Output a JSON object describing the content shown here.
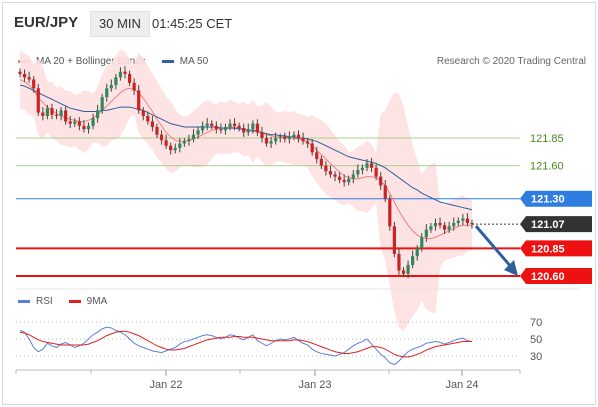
{
  "header": {
    "symbol": "EUR/JPY",
    "timeframe": "30 MIN",
    "time": "01:45:25 CET"
  },
  "legend": {
    "main": [
      {
        "label": "MA 20 + Bollinger Bands",
        "color": "#f08080"
      },
      {
        "label": "MA 50",
        "color": "#2f5f9c"
      }
    ],
    "rsi": [
      {
        "label": "RSI",
        "color": "#5b7fd6"
      },
      {
        "label": "9MA",
        "color": "#e02020"
      }
    ]
  },
  "copyright": "Research © 2020 Trading Central",
  "chart_data": [
    {
      "type": "candlestick",
      "title": "",
      "x_ticks": [
        "Jan 22",
        "Jan 23",
        "Jan 24"
      ],
      "y_axis_labels": [
        "121.85",
        "121.60"
      ],
      "levels": [
        {
          "value": 121.85,
          "label": "121.85",
          "color": "#7ab648",
          "style": "support-resistance"
        },
        {
          "value": 121.6,
          "label": "121.60",
          "color": "#7ab648",
          "style": "support-resistance"
        },
        {
          "value": 121.3,
          "label": "121.30",
          "color": "#2f7de1",
          "style": "pivot"
        },
        {
          "value": 121.07,
          "label": "121.07",
          "color": "#333333",
          "style": "last-price"
        },
        {
          "value": 120.85,
          "label": "120.85",
          "color": "#ee1111",
          "style": "target"
        },
        {
          "value": 120.6,
          "label": "120.60",
          "color": "#ee1111",
          "style": "target"
        }
      ],
      "close_series": [
        122.43,
        122.4,
        122.38,
        122.3,
        122.08,
        122.05,
        122.12,
        122.06,
        122.05,
        122.1,
        122.0,
        121.98,
        122.0,
        121.96,
        121.93,
        121.96,
        122.03,
        122.1,
        122.22,
        122.3,
        122.33,
        122.4,
        122.45,
        122.43,
        122.35,
        122.28,
        122.1,
        122.05,
        122.0,
        121.95,
        121.88,
        121.83,
        121.78,
        121.74,
        121.76,
        121.8,
        121.82,
        121.84,
        121.88,
        121.92,
        121.96,
        121.98,
        121.96,
        121.93,
        121.92,
        121.95,
        121.98,
        121.96,
        121.94,
        121.9,
        121.93,
        121.98,
        121.9,
        121.85,
        121.8,
        121.82,
        121.85,
        121.86,
        121.84,
        121.86,
        121.88,
        121.85,
        121.82,
        121.8,
        121.72,
        121.66,
        121.6,
        121.55,
        121.52,
        121.5,
        121.47,
        121.45,
        121.48,
        121.52,
        121.56,
        121.58,
        121.62,
        121.58,
        121.5,
        121.42,
        121.3,
        121.05,
        120.8,
        120.65,
        120.62,
        120.7,
        120.78,
        120.85,
        120.95,
        121.02,
        121.05,
        121.08,
        121.06,
        121.02,
        121.05,
        121.08,
        121.1,
        121.12,
        121.08,
        121.07
      ],
      "ma20": [
        122.38,
        122.36,
        122.33,
        122.28,
        122.22,
        122.17,
        122.13,
        122.1,
        122.07,
        122.05,
        122.03,
        122.02,
        122.01,
        122.0,
        122.0,
        122.01,
        122.03,
        122.06,
        122.1,
        122.14,
        122.18,
        122.22,
        122.26,
        122.29,
        122.3,
        122.29,
        122.26,
        122.21,
        122.15,
        122.09,
        122.02,
        121.96,
        121.9,
        121.86,
        121.83,
        121.82,
        121.82,
        121.83,
        121.84,
        121.86,
        121.88,
        121.9,
        121.92,
        121.93,
        121.94,
        121.94,
        121.95,
        121.95,
        121.94,
        121.93,
        121.92,
        121.91,
        121.91,
        121.89,
        121.88,
        121.87,
        121.86,
        121.86,
        121.86,
        121.85,
        121.85,
        121.84,
        121.83,
        121.81,
        121.78,
        121.74,
        121.7,
        121.66,
        121.62,
        121.58,
        121.54,
        121.51,
        121.49,
        121.48,
        121.48,
        121.49,
        121.5,
        121.5,
        121.49,
        121.46,
        121.42,
        121.35,
        121.27,
        121.19,
        121.12,
        121.06,
        121.01,
        120.97,
        120.95,
        120.94,
        120.94,
        120.95,
        120.97,
        120.99,
        121.01,
        121.03,
        121.05,
        121.06,
        121.06,
        121.06
      ],
      "ma50": [
        122.33,
        122.32,
        122.3,
        122.28,
        122.26,
        122.24,
        122.22,
        122.2,
        122.18,
        122.16,
        122.14,
        122.12,
        122.11,
        122.1,
        122.09,
        122.09,
        122.09,
        122.09,
        122.1,
        122.1,
        122.11,
        122.12,
        122.13,
        122.13,
        122.13,
        122.12,
        122.11,
        122.1,
        122.08,
        122.06,
        122.04,
        122.02,
        122.0,
        121.98,
        121.97,
        121.96,
        121.95,
        121.95,
        121.95,
        121.95,
        121.95,
        121.95,
        121.95,
        121.95,
        121.94,
        121.94,
        121.94,
        121.94,
        121.93,
        121.93,
        121.92,
        121.92,
        121.91,
        121.9,
        121.89,
        121.88,
        121.88,
        121.87,
        121.87,
        121.86,
        121.86,
        121.85,
        121.85,
        121.84,
        121.83,
        121.82,
        121.8,
        121.78,
        121.76,
        121.74,
        121.72,
        121.7,
        121.68,
        121.67,
        121.66,
        121.65,
        121.64,
        121.63,
        121.62,
        121.6,
        121.58,
        121.55,
        121.52,
        121.49,
        121.46,
        121.43,
        121.4,
        121.38,
        121.35,
        121.33,
        121.31,
        121.29,
        121.27,
        121.26,
        121.25,
        121.24,
        121.23,
        121.22,
        121.21,
        121.2
      ]
    },
    {
      "type": "line",
      "title": "",
      "y_ticks": [
        70,
        50,
        30
      ],
      "ylim": [
        20,
        80
      ],
      "series": [
        {
          "name": "RSI",
          "values": [
            60,
            58,
            50,
            40,
            35,
            38,
            45,
            42,
            40,
            44,
            46,
            43,
            40,
            42,
            45,
            50,
            55,
            58,
            62,
            64,
            63,
            60,
            58,
            55,
            50,
            45,
            42,
            40,
            38,
            36,
            35,
            34,
            36,
            38,
            40,
            44,
            47,
            48,
            50,
            52,
            54,
            55,
            54,
            52,
            50,
            52,
            55,
            54,
            51,
            49,
            52,
            55,
            48,
            45,
            42,
            45,
            48,
            50,
            49,
            50,
            52,
            48,
            45,
            43,
            38,
            35,
            33,
            32,
            31,
            30,
            32,
            34,
            38,
            42,
            45,
            47,
            50,
            44,
            38,
            32,
            28,
            22,
            20,
            24,
            30,
            35,
            38,
            40,
            42,
            45,
            46,
            47,
            46,
            44,
            46,
            48,
            50,
            51,
            48,
            47
          ]
        },
        {
          "name": "9MA",
          "values": [
            58,
            57,
            55,
            52,
            49,
            47,
            46,
            45,
            44,
            43,
            43,
            43,
            43,
            43,
            43,
            44,
            46,
            48,
            51,
            54,
            56,
            58,
            59,
            59,
            58,
            56,
            54,
            51,
            48,
            45,
            42,
            40,
            38,
            37,
            37,
            38,
            39,
            41,
            43,
            45,
            47,
            49,
            50,
            51,
            52,
            52,
            52,
            53,
            53,
            52,
            52,
            52,
            51,
            50,
            49,
            48,
            48,
            48,
            48,
            48,
            49,
            49,
            48,
            47,
            45,
            43,
            41,
            39,
            37,
            35,
            34,
            33,
            33,
            34,
            35,
            37,
            39,
            41,
            41,
            40,
            38,
            35,
            32,
            30,
            29,
            29,
            30,
            32,
            34,
            37,
            39,
            41,
            42,
            43,
            44,
            45,
            46,
            47,
            47,
            47
          ]
        }
      ]
    }
  ]
}
